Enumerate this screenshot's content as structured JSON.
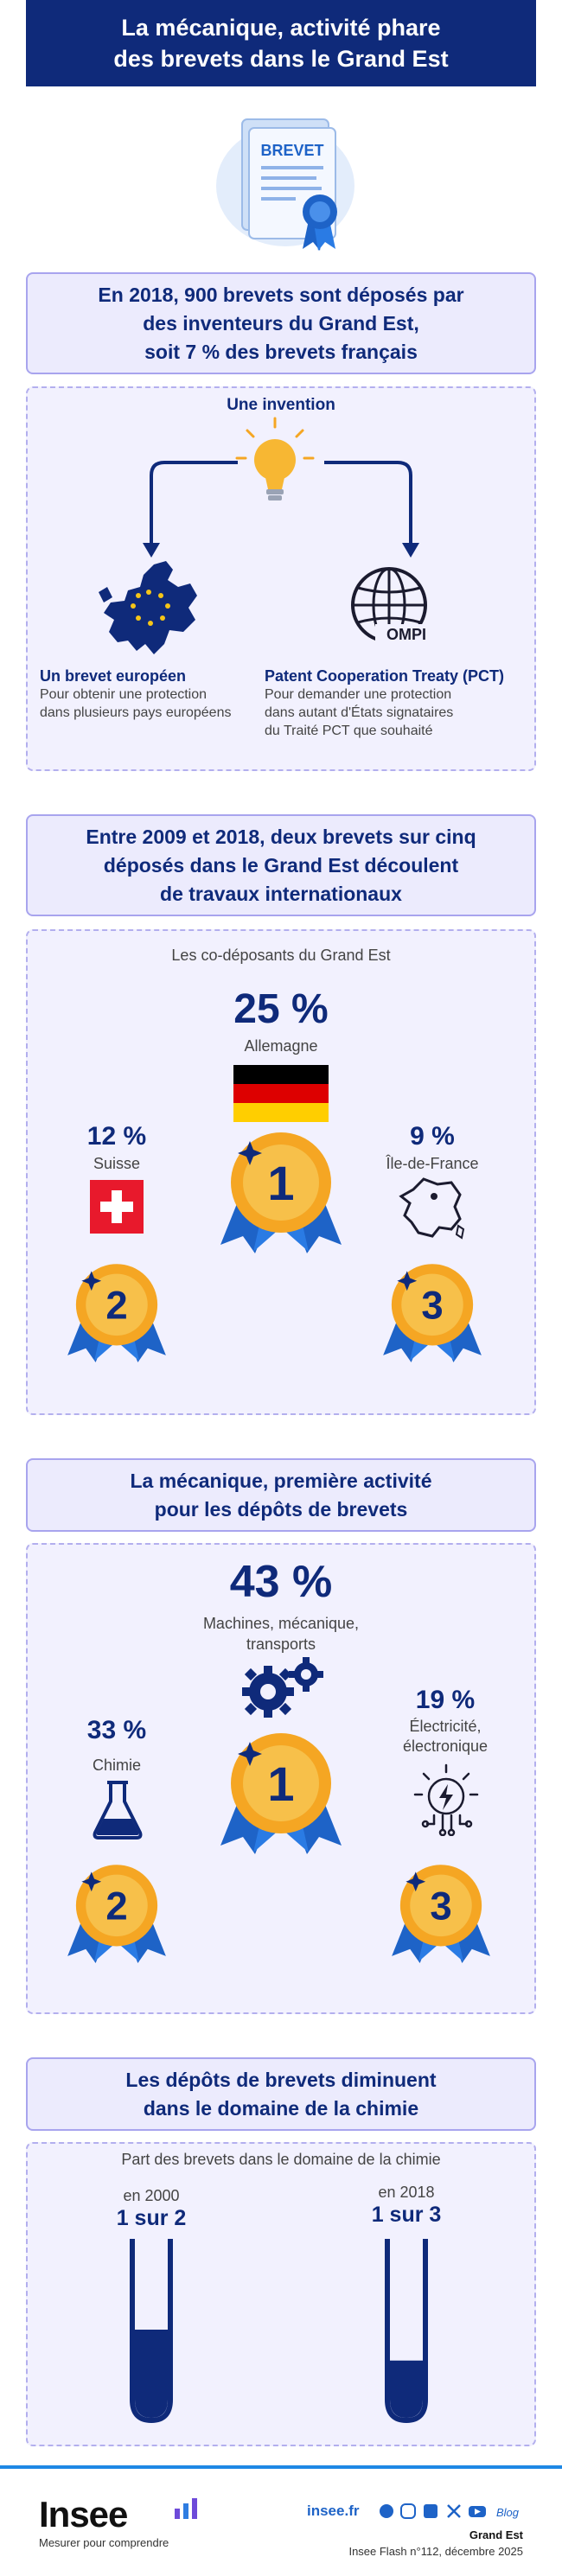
{
  "header": {
    "title_line1": "La mécanique, activité phare",
    "title_line2": "des brevets dans le Grand Est",
    "doc_label": "BREVET"
  },
  "section1": {
    "heading_lines": [
      "En 2018, 900 brevets sont déposés par",
      "des inventeurs du Grand Est,",
      "soit 7 % des brevets français"
    ],
    "invention_label": "Une invention",
    "left_title": "Un brevet européen",
    "left_desc": [
      "Pour obtenir une protection",
      "dans plusieurs pays européens"
    ],
    "ompi_label": "OMPI",
    "right_title": "Patent Cooperation Treaty (PCT)",
    "right_desc": [
      "Pour demander une protection",
      "dans autant d'États signataires",
      "du Traité PCT que souhaité"
    ]
  },
  "section2": {
    "heading_lines": [
      "Entre 2009 et 2018, deux brevets sur cinq",
      "déposés dans le Grand Est découlent",
      "de travaux internationaux"
    ],
    "subtitle": "Les co-déposants du Grand Est",
    "first": {
      "value": "25 %",
      "label": "Allemagne",
      "rank": "1"
    },
    "second": {
      "value": "12 %",
      "label": "Suisse",
      "rank": "2"
    },
    "third": {
      "value": "9 %",
      "label": "Île-de-France",
      "rank": "3"
    }
  },
  "section3": {
    "heading_lines": [
      "La mécanique, première activité",
      "pour les dépôts de brevets"
    ],
    "first": {
      "value": "43 %",
      "label_lines": [
        "Machines, mécanique,",
        "transports"
      ],
      "rank": "1"
    },
    "second": {
      "value": "33 %",
      "label": "Chimie",
      "rank": "2"
    },
    "third": {
      "value": "19 %",
      "label_lines": [
        "Électricité,",
        "électronique"
      ],
      "rank": "3"
    }
  },
  "section4": {
    "heading_lines": [
      "Les dépôts de brevets diminuent",
      "dans le domaine de la chimie"
    ],
    "subtitle": "Part des brevets dans le domaine de la chimie",
    "left": {
      "year": "en 2000",
      "ratio": "1 sur 2",
      "fill": 0.5
    },
    "right": {
      "year": "en 2018",
      "ratio": "1 sur 3",
      "fill": 0.33
    }
  },
  "footer": {
    "logo": "Insee",
    "tagline": "Mesurer pour comprendre",
    "site": "insee.fr",
    "blog": "Blog",
    "region": "Grand Est",
    "ref": "Insee Flash n°112, décembre 2025"
  },
  "colors": {
    "navy": "#0f2a7a",
    "lavender": "#ecebfd",
    "gold": "#f5a623",
    "blue": "#1e63c7"
  }
}
